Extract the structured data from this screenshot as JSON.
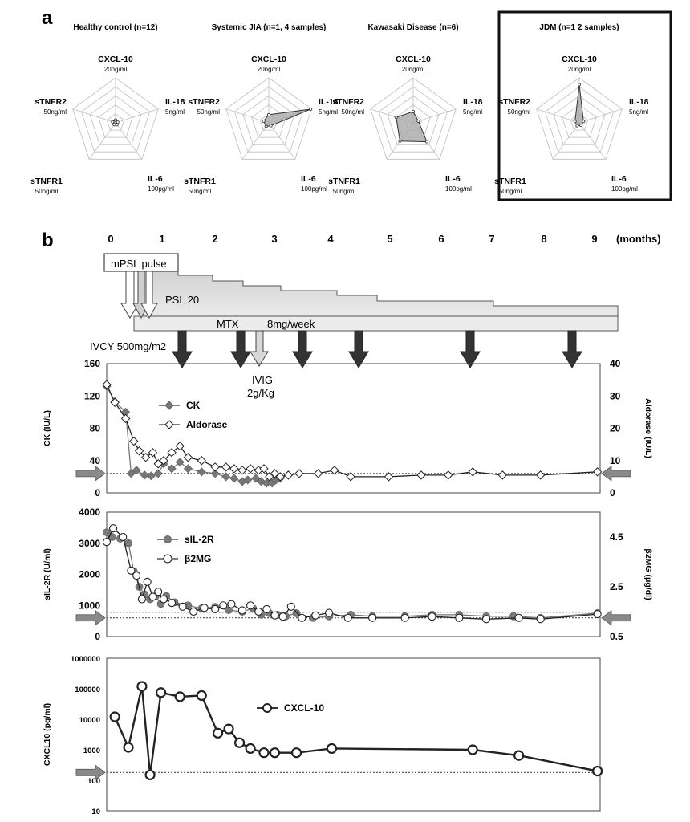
{
  "panel_a": {
    "label": "a",
    "axis_labels": [
      {
        "name": "CXCL-10",
        "unit": "20ng/ml"
      },
      {
        "name": "IL-18",
        "unit": "5ng/ml"
      },
      {
        "name": "IL-6",
        "unit": "100pg/ml"
      },
      {
        "name": "sTNFR1",
        "unit": "50ng/ml"
      },
      {
        "name": "sTNFR2",
        "unit": "50ng/ml"
      }
    ],
    "radars": [
      {
        "title": "Healthy control (n=12)",
        "values": [
          0.06,
          0.05,
          0.05,
          0.05,
          0.07
        ],
        "highlight": false
      },
      {
        "title": "Systemic JIA (n=1, 4 samples)",
        "values": [
          0.18,
          0.98,
          0.08,
          0.1,
          0.12
        ],
        "highlight": false
      },
      {
        "title": "Kawasaki Disease (n=6)",
        "values": [
          0.25,
          0.12,
          0.52,
          0.5,
          0.4
        ],
        "highlight": false
      },
      {
        "title": "JDM (n=1 2 samples)",
        "values": [
          0.85,
          0.1,
          0.07,
          0.08,
          0.1
        ],
        "highlight": true
      }
    ]
  },
  "panel_b": {
    "label": "b",
    "month_unit": "(months)",
    "months": [
      "0",
      "1",
      "2",
      "3",
      "4",
      "5",
      "6",
      "7",
      "8",
      "9"
    ],
    "treatments": {
      "mpsl": "mPSL pulse",
      "psl": "PSL 20",
      "mtx": "MTX",
      "mtx_dose": "8mg/week",
      "ivcy": "IVCY 500mg/m2",
      "ivig": "IVIG",
      "ivig_dose": "2g/Kg"
    }
  },
  "chart_data": [
    {
      "type": "radar",
      "title": "Healthy control (n=12)",
      "axes": [
        "CXCL-10",
        "IL-18",
        "IL-6",
        "sTNFR1",
        "sTNFR2"
      ],
      "axis_max": [
        "20ng/ml",
        "5ng/ml",
        "100pg/ml",
        "50ng/ml",
        "50ng/ml"
      ],
      "values_fraction_of_max": [
        0.06,
        0.05,
        0.05,
        0.05,
        0.07
      ]
    },
    {
      "type": "radar",
      "title": "Systemic JIA (n=1, 4 samples)",
      "axes": [
        "CXCL-10",
        "IL-18",
        "IL-6",
        "sTNFR1",
        "sTNFR2"
      ],
      "axis_max": [
        "20ng/ml",
        "5ng/ml",
        "100pg/ml",
        "50ng/ml",
        "50ng/ml"
      ],
      "values_fraction_of_max": [
        0.18,
        0.98,
        0.08,
        0.1,
        0.12
      ]
    },
    {
      "type": "radar",
      "title": "Kawasaki Disease (n=6)",
      "axes": [
        "CXCL-10",
        "IL-18",
        "IL-6",
        "sTNFR1",
        "sTNFR2"
      ],
      "axis_max": [
        "20ng/ml",
        "5ng/ml",
        "100pg/ml",
        "50ng/ml",
        "50ng/ml"
      ],
      "values_fraction_of_max": [
        0.25,
        0.12,
        0.52,
        0.5,
        0.4
      ]
    },
    {
      "type": "radar",
      "title": "JDM (n=1 2 samples)",
      "axes": [
        "CXCL-10",
        "IL-18",
        "IL-6",
        "sTNFR1",
        "sTNFR2"
      ],
      "axis_max": [
        "20ng/ml",
        "5ng/ml",
        "100pg/ml",
        "50ng/ml",
        "50ng/ml"
      ],
      "values_fraction_of_max": [
        0.85,
        0.1,
        0.07,
        0.08,
        0.1
      ]
    },
    {
      "type": "line",
      "xlim": [
        0,
        9.1
      ],
      "ylabel": "CK (IU/L)",
      "ylim": [
        0,
        160
      ],
      "yticks": [
        0,
        40,
        80,
        120,
        160
      ],
      "y2label": "Aldorase (IU/L)",
      "y2lim": [
        0,
        40
      ],
      "y2ticks": [
        0,
        10,
        20,
        30,
        40
      ],
      "reference_line_y": 24,
      "series": [
        {
          "name": "CK",
          "axis": "left",
          "marker": "diamond-filled",
          "x": [
            0,
            0.15,
            0.35,
            0.45,
            0.55,
            0.7,
            0.82,
            0.95,
            1.05,
            1.2,
            1.35,
            1.5,
            1.75,
            2.0,
            2.2,
            2.35,
            2.5,
            2.6,
            2.75,
            2.85,
            2.95,
            3.05,
            3.12,
            3.2
          ],
          "y": [
            132,
            113,
            100,
            24,
            28,
            22,
            21,
            24,
            36,
            30,
            38,
            30,
            26,
            24,
            20,
            18,
            14,
            16,
            18,
            14,
            12,
            12,
            16,
            18
          ]
        },
        {
          "name": "Aldorase",
          "axis": "right",
          "marker": "diamond-open",
          "x": [
            0,
            0.15,
            0.35,
            0.5,
            0.6,
            0.72,
            0.85,
            0.95,
            1.05,
            1.2,
            1.35,
            1.5,
            1.75,
            2.0,
            2.2,
            2.35,
            2.5,
            2.65,
            2.8,
            2.9,
            3.0,
            3.1,
            3.2,
            3.35,
            3.55,
            3.9,
            4.2,
            4.5,
            5.2,
            5.8,
            6.3,
            6.75,
            7.3,
            8.0,
            9.05
          ],
          "y": [
            33.5,
            28,
            23,
            16,
            13,
            11,
            12.5,
            9,
            10,
            12.5,
            14.5,
            11,
            10,
            8,
            8,
            7.5,
            7,
            7.5,
            7,
            7.5,
            5,
            6,
            5,
            5.5,
            6,
            6,
            7,
            5,
            5,
            5.5,
            5.5,
            6.5,
            5.5,
            5.5,
            6.5
          ]
        }
      ]
    },
    {
      "type": "line",
      "xlim": [
        0,
        9.1
      ],
      "ylabel": "sIL-2R (U/ml)",
      "ylim": [
        0,
        4000
      ],
      "yticks": [
        0,
        1000,
        2000,
        3000,
        4000
      ],
      "y2label": "β2MG (μg/dl)",
      "y2lim": [
        0.5,
        5.5
      ],
      "y2ticks": [
        0.5,
        2.5,
        4.5
      ],
      "reference_line_y": 600,
      "series": [
        {
          "name": "sIL-2R",
          "axis": "left",
          "marker": "circle-filled",
          "x": [
            0,
            0.1,
            0.25,
            0.4,
            0.5,
            0.6,
            0.7,
            0.8,
            0.9,
            1.0,
            1.1,
            1.25,
            1.5,
            1.75,
            2.0,
            2.25,
            2.5,
            2.7,
            2.85,
            3.0,
            3.15,
            3.3,
            3.5,
            3.8,
            4.1,
            4.5,
            4.9,
            5.5,
            6.0,
            6.5,
            7.0,
            7.5,
            8.0,
            9.05
          ],
          "y": [
            3350,
            3200,
            3150,
            3000,
            2100,
            1600,
            1350,
            1200,
            1300,
            1050,
            1300,
            1100,
            1000,
            900,
            950,
            850,
            800,
            900,
            700,
            750,
            700,
            650,
            750,
            600,
            650,
            700,
            650,
            650,
            700,
            700,
            650,
            650,
            600,
            750
          ]
        },
        {
          "name": "β2MG",
          "axis": "right",
          "marker": "circle-open",
          "x": [
            0,
            0.12,
            0.3,
            0.45,
            0.55,
            0.65,
            0.75,
            0.85,
            0.95,
            1.05,
            1.2,
            1.4,
            1.6,
            1.8,
            2.0,
            2.15,
            2.3,
            2.5,
            2.65,
            2.8,
            2.95,
            3.1,
            3.25,
            3.4,
            3.6,
            3.85,
            4.1,
            4.45,
            4.9,
            5.5,
            6.0,
            6.5,
            7.0,
            7.6,
            8.0,
            9.05
          ],
          "y": [
            4.3,
            4.85,
            4.5,
            3.15,
            2.95,
            2.0,
            2.7,
            2.1,
            2.3,
            2.0,
            1.85,
            1.7,
            1.5,
            1.65,
            1.6,
            1.75,
            1.8,
            1.55,
            1.75,
            1.5,
            1.6,
            1.35,
            1.3,
            1.7,
            1.25,
            1.35,
            1.45,
            1.25,
            1.25,
            1.25,
            1.3,
            1.25,
            1.2,
            1.25,
            1.2,
            1.4
          ]
        }
      ]
    },
    {
      "type": "line",
      "xlim": [
        0,
        9.1
      ],
      "ylabel": "CXCL10 (pg/ml)",
      "yscale": "log",
      "ylim": [
        10,
        1000000
      ],
      "yticks": [
        10,
        100,
        1000,
        10000,
        100000,
        1000000
      ],
      "reference_line_y": 180,
      "series": [
        {
          "name": "CXCL-10",
          "axis": "left",
          "marker": "circle-open",
          "x": [
            0.15,
            0.4,
            0.65,
            0.8,
            1.0,
            1.35,
            1.75,
            2.05,
            2.25,
            2.45,
            2.65,
            2.9,
            3.1,
            3.5,
            4.15,
            6.75,
            7.6,
            9.05
          ],
          "y": [
            12000,
            1200,
            120000,
            150,
            75000,
            55000,
            60000,
            3500,
            4800,
            1700,
            1100,
            800,
            800,
            800,
            1100,
            1000,
            650,
            200
          ]
        }
      ]
    }
  ]
}
